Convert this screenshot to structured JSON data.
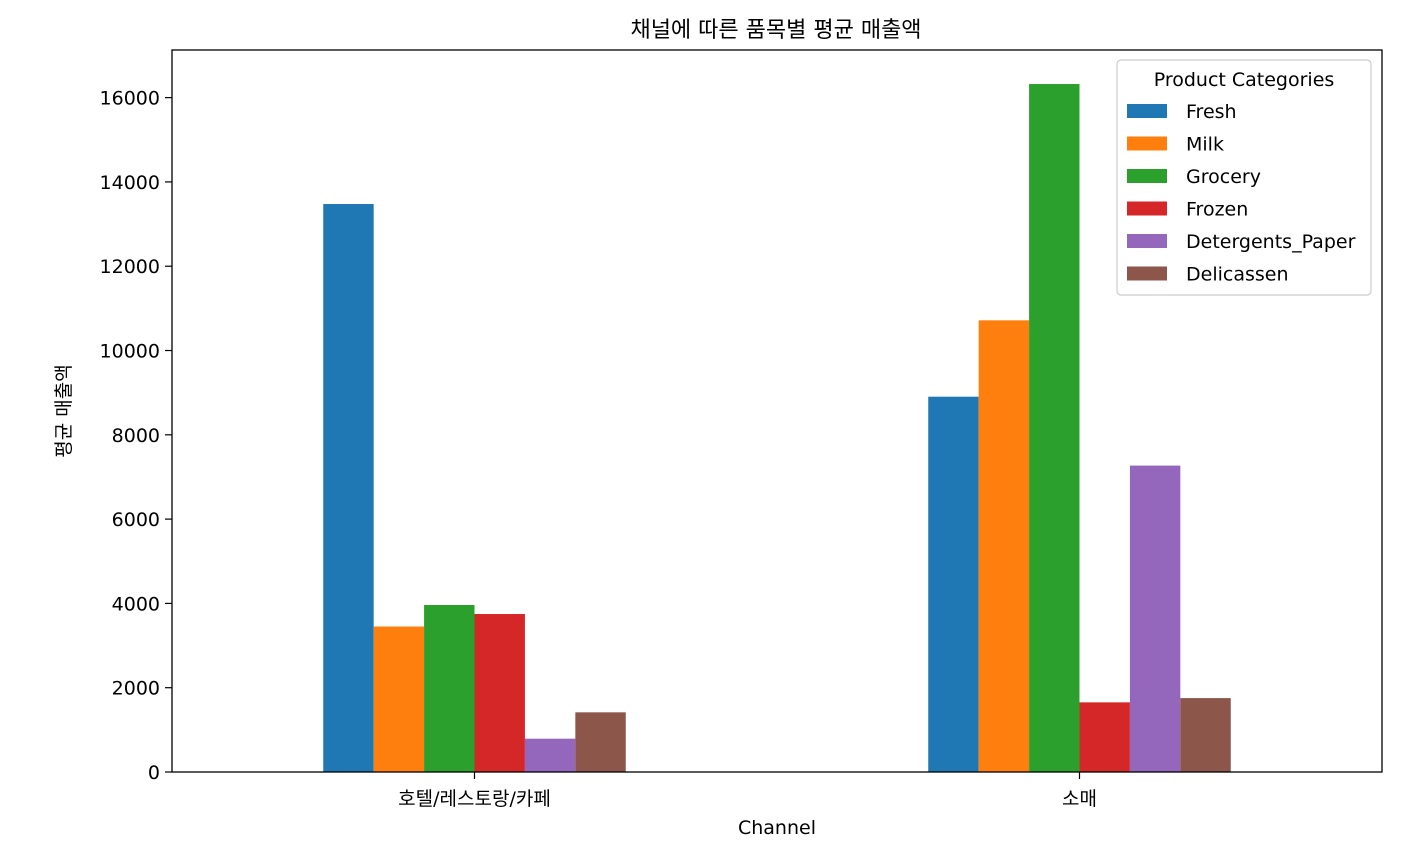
{
  "chart_data": {
    "type": "bar",
    "title": "채널에 따른 품목별 평균 매출액",
    "xlabel": "Channel",
    "ylabel": "평균 매출액",
    "categories": [
      "호텔/레스토랑/카페",
      "소매"
    ],
    "series": [
      {
        "name": "Fresh",
        "color": "#1f77b4",
        "values": [
          13475.56,
          8904.32
        ]
      },
      {
        "name": "Milk",
        "color": "#ff7f0e",
        "values": [
          3451.72,
          10716.5
        ]
      },
      {
        "name": "Grocery",
        "color": "#2ca02c",
        "values": [
          3962.14,
          16322.85
        ]
      },
      {
        "name": "Frozen",
        "color": "#d62728",
        "values": [
          3748.25,
          1652.61
        ]
      },
      {
        "name": "Detergents_Paper",
        "color": "#9467bd",
        "values": [
          790.56,
          7269.51
        ]
      },
      {
        "name": "Delicassen",
        "color": "#8c564b",
        "values": [
          1415.96,
          1753.44
        ]
      }
    ],
    "ylim": [
      0,
      17130
    ],
    "yticks": [
      0,
      2000,
      4000,
      6000,
      8000,
      10000,
      12000,
      14000,
      16000
    ],
    "legend": {
      "title": "Product Categories",
      "placement": "top-right"
    },
    "grid": false
  }
}
